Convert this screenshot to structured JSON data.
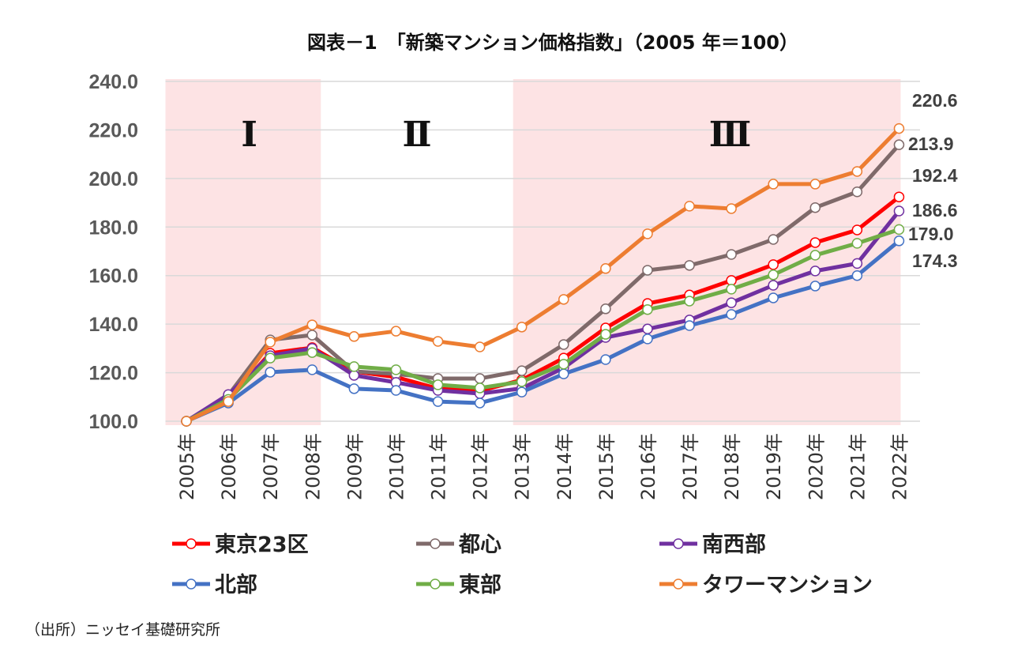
{
  "chart_data": {
    "type": "line",
    "title": "図表－1　「新築マンション価格指数」（2005 年＝100）",
    "categories": [
      "2005年",
      "2006年",
      "2007年",
      "2008年",
      "2009年",
      "2010年",
      "2011年",
      "2012年",
      "2013年",
      "2014年",
      "2015年",
      "2016年",
      "2017年",
      "2018年",
      "2019年",
      "2020年",
      "2021年",
      "2022年"
    ],
    "ylim": [
      100,
      240
    ],
    "yticks": [
      "100.0",
      "120.0",
      "140.0",
      "160.0",
      "180.0",
      "200.0",
      "220.0",
      "240.0"
    ],
    "grid": true,
    "legend_position": "bottom",
    "regions": [
      {
        "label": "Ⅰ",
        "from": "2005年",
        "to": "2008年",
        "color": "#fde3e4"
      },
      {
        "label": "Ⅱ",
        "from": "2009年",
        "to": "2012年",
        "color": "#ffffff"
      },
      {
        "label": "Ⅲ",
        "from": "2013年",
        "to": "2022年",
        "color": "#fde3e4"
      }
    ],
    "series": [
      {
        "name": "東京23区",
        "color": "#ff0000",
        "end_label": "192.4",
        "values": [
          100,
          109,
          128,
          130.3,
          120.5,
          118.2,
          113.4,
          112.5,
          117,
          126,
          138.4,
          148.5,
          152,
          158,
          164.5,
          173.6,
          178.8,
          192.4
        ]
      },
      {
        "name": "都心",
        "color": "#7f6a6a",
        "end_label": "213.9",
        "values": [
          100,
          110.7,
          133.5,
          135.5,
          120.5,
          119.5,
          117.6,
          117.6,
          120.8,
          131.6,
          146.3,
          162.2,
          164.2,
          168.7,
          174.9,
          188,
          194.5,
          213.9
        ]
      },
      {
        "name": "南西部",
        "color": "#7030a0",
        "end_label": "186.6",
        "values": [
          100,
          111,
          127,
          130,
          118.9,
          116,
          112.7,
          111.4,
          113.5,
          122,
          134.5,
          138,
          141.7,
          148.8,
          156,
          161.9,
          165,
          186.6
        ]
      },
      {
        "name": "北部",
        "color": "#4472c4",
        "end_label": "174.3",
        "values": [
          100,
          107.5,
          120.2,
          121.2,
          113.4,
          112.7,
          108.1,
          107.5,
          112,
          119.5,
          125.4,
          133.9,
          139.4,
          144,
          150.8,
          155.7,
          160,
          174.3
        ]
      },
      {
        "name": "東部",
        "color": "#70ad47",
        "end_label": "179.0",
        "values": [
          100,
          109,
          126,
          128.3,
          122.5,
          121.2,
          115,
          113.7,
          116.3,
          123.5,
          135.8,
          146,
          149.5,
          154.4,
          160.3,
          168.4,
          173.3,
          179.0
        ]
      },
      {
        "name": "タワーマンション",
        "color": "#ed7d31",
        "end_label": "220.6",
        "values": [
          100,
          108.1,
          132.6,
          139.7,
          134.9,
          137.1,
          132.9,
          130.6,
          138.8,
          150.2,
          162.9,
          177.2,
          188.6,
          187.6,
          197.7,
          197.7,
          202.9,
          220.6
        ]
      }
    ]
  },
  "source": "（出所）ニッセイ基礎研究所"
}
